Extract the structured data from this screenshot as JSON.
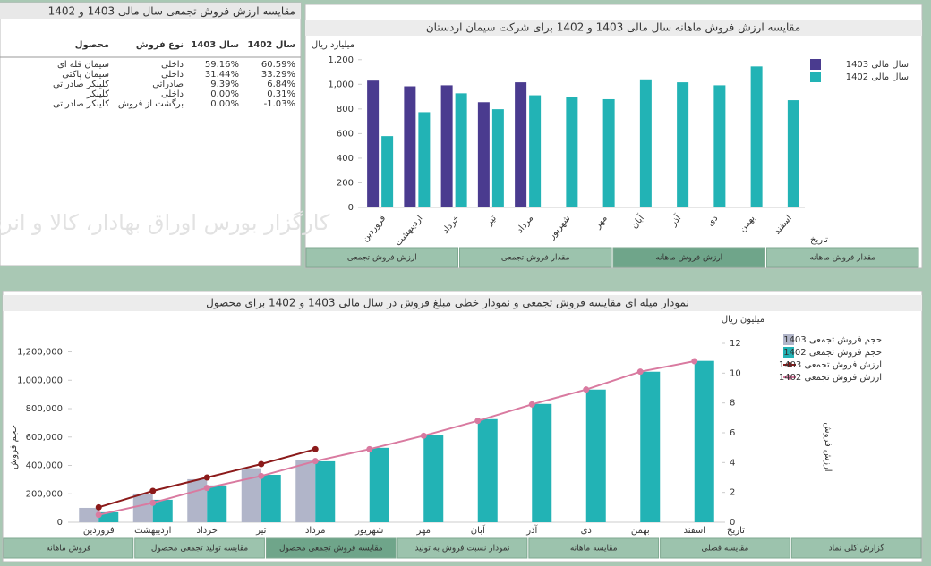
{
  "table_panel": {
    "title": "مقایسه ارزش فروش تجمعی سال مالی 1403 و 1402",
    "columns": [
      "محصول",
      "نوع فروش",
      "سال 1403",
      "سال 1402"
    ],
    "rows": [
      [
        "سیمان فله ای",
        "داخلی",
        "59.16%",
        "60.59%"
      ],
      [
        "سیمان پاکتی",
        "داخلی",
        "31.44%",
        "33.29%"
      ],
      [
        "کلینکر صادراتی",
        "صادراتی",
        "9.39%",
        "6.84%"
      ],
      [
        "کلینکر",
        "داخلی",
        "0.00%",
        "0.31%"
      ],
      [
        "کلینکر صادراتی",
        "برگشت از فروش",
        "0.00%",
        "-1.03%"
      ]
    ],
    "watermark": "کارگزار بورس اوراق بهادار، کالا و انرژی"
  },
  "chart_data": [
    {
      "type": "bar",
      "title": "مقایسه ارزش فروش ماهانه سال مالی 1403 و 1402 برای شرکت سیمان اردستان",
      "y_label": "میلیارد ریال",
      "x_label": "تاریخ",
      "categories": [
        "فروردین",
        "اردیبهشت",
        "خرداد",
        "تیر",
        "مرداد",
        "شهریور",
        "مهر",
        "آبان",
        "آذر",
        "دی",
        "بهمن",
        "اسفند"
      ],
      "series": [
        {
          "name": "سال مالی 1403",
          "color": "#4a3b8f",
          "values": [
            1030,
            984,
            992,
            855,
            1016,
            null,
            null,
            null,
            null,
            null,
            null,
            null
          ]
        },
        {
          "name": "سال مالی 1402",
          "color": "#22b3b5",
          "values": [
            580,
            774,
            927,
            798,
            911,
            895,
            879,
            1040,
            1016,
            992,
            1145,
            871
          ]
        }
      ],
      "ylim": [
        0,
        1300
      ],
      "yticks": [
        0,
        200,
        400,
        600,
        800,
        {
          "value": 1000,
          "label": "1,000"
        },
        {
          "value": 1200,
          "label": "1,200"
        }
      ]
    },
    {
      "type": "bar_line",
      "title": "نمودار میله ای مقایسه فروش تجمعی و نمودار خطی مبلغ فروش در سال مالی 1403 و 1402 برای محصول",
      "y_label": "حجم فروش",
      "y2_label": "ارزش فروش",
      "y2_unit": "میلیون ریال",
      "x_label": "تاریخ",
      "categories": [
        "فروردین",
        "اردیبهشت",
        "خرداد",
        "تیر",
        "مرداد",
        "شهریور",
        "مهر",
        "آبان",
        "آذر",
        "دی",
        "بهمن",
        "اسفند"
      ],
      "series": [
        {
          "name": "حجم فروش تجمعی 1403",
          "mark": "bar",
          "color": "#b1b5c9",
          "values": [
            101000,
            202000,
            303000,
            380000,
            435000,
            null,
            null,
            null,
            null,
            null,
            null,
            null
          ]
        },
        {
          "name": "حجم فروش تجمعی 1402",
          "mark": "bar",
          "color": "#22b3b5",
          "values": [
            70000,
            158000,
            259000,
            334000,
            429000,
            524000,
            612000,
            726000,
            833000,
            934000,
            1060000,
            1136000
          ]
        },
        {
          "name": "ارزش فروش تجمعی 1403",
          "mark": "line",
          "axis": "y2",
          "color": "#8b1a1a",
          "values": [
            1.0,
            2.1,
            3.0,
            3.9,
            4.9,
            null,
            null,
            null,
            null,
            null,
            null,
            null
          ]
        },
        {
          "name": "ارزش فروش تجمعی 1402",
          "mark": "line",
          "axis": "y2",
          "color": "#d97aa0",
          "values": [
            0.5,
            1.3,
            2.3,
            3.1,
            4.1,
            4.9,
            5.8,
            6.8,
            7.9,
            8.9,
            10.1,
            10.8
          ]
        }
      ],
      "ylim": [
        0,
        1260000
      ],
      "yticks": [
        0,
        {
          "value": 200000,
          "label": "200,000"
        },
        {
          "value": 400000,
          "label": "400,000"
        },
        {
          "value": 600000,
          "label": "600,000"
        },
        {
          "value": 800000,
          "label": "800,000"
        },
        {
          "value": 1000000,
          "label": "1,000,000"
        },
        {
          "value": 1200000,
          "label": "1,200,000"
        }
      ],
      "y2lim": [
        0,
        12
      ],
      "y2ticks": [
        0,
        2,
        4,
        6,
        8,
        10,
        12
      ]
    }
  ],
  "chart_tabs": [
    {
      "label": "ارزش فروش تجمعی"
    },
    {
      "label": "مقدار فروش تجمعی"
    },
    {
      "label": "ارزش فروش ماهانه",
      "active": true
    },
    {
      "label": "مقدار فروش ماهانه"
    }
  ],
  "bottom_tabs": [
    {
      "label": "فروش ماهانه"
    },
    {
      "label": "مقایسه تولید تجمعی محصول"
    },
    {
      "label": "مقایسه فروش تجمعی محصول",
      "active": true
    },
    {
      "label": "نمودار نسبت فروش به تولید"
    },
    {
      "label": "مقایسه ماهانه"
    },
    {
      "label": "مقایسه فصلی"
    },
    {
      "label": "گزارش کلی نماد"
    }
  ]
}
